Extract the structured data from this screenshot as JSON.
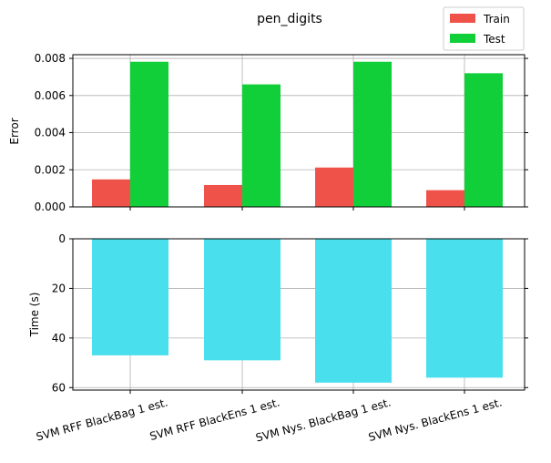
{
  "chart_data": {
    "type": "bar",
    "title": "pen_digits",
    "categories": [
      "SVM RFF BlackBag 1 est.",
      "SVM RFF BlackEns 1 est.",
      "SVM Nys. BlackBag 1 est.",
      "SVM Nys. BlackEns 1 est."
    ],
    "legend": {
      "position": "top-right",
      "entries": [
        "Train",
        "Test"
      ]
    },
    "top_panel": {
      "ylabel": "Error",
      "ylim": [
        0,
        0.0082
      ],
      "yticks": [
        "0.000",
        "0.002",
        "0.004",
        "0.006",
        "0.008"
      ],
      "ytick_values": [
        0,
        0.002,
        0.004,
        0.006,
        0.008
      ],
      "grid": true,
      "series": [
        {
          "name": "Train",
          "color": "#ef5249",
          "values": [
            0.00148,
            0.00118,
            0.00212,
            0.0009
          ]
        },
        {
          "name": "Test",
          "color": "#10cf38",
          "values": [
            0.00782,
            0.0066,
            0.00782,
            0.0072
          ]
        }
      ]
    },
    "bottom_panel": {
      "ylabel": "Time (s)",
      "ylim": [
        0,
        61
      ],
      "inverted": true,
      "yticks": [
        "0",
        "20",
        "40",
        "60"
      ],
      "ytick_values": [
        0,
        20,
        40,
        60
      ],
      "grid": true,
      "series": [
        {
          "color": "#4adfec",
          "values": [
            47,
            49,
            58,
            56
          ]
        }
      ]
    }
  }
}
